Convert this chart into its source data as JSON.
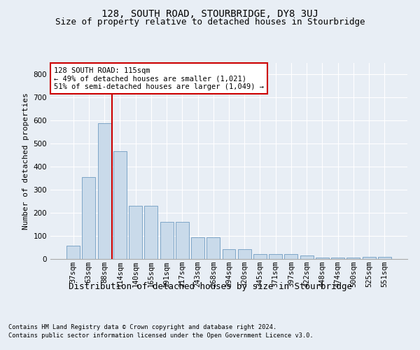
{
  "title": "128, SOUTH ROAD, STOURBRIDGE, DY8 3UJ",
  "subtitle": "Size of property relative to detached houses in Stourbridge",
  "xlabel": "Distribution of detached houses by size in Stourbridge",
  "ylabel": "Number of detached properties",
  "footer_line1": "Contains HM Land Registry data © Crown copyright and database right 2024.",
  "footer_line2": "Contains public sector information licensed under the Open Government Licence v3.0.",
  "categories": [
    "37sqm",
    "63sqm",
    "88sqm",
    "114sqm",
    "140sqm",
    "165sqm",
    "191sqm",
    "217sqm",
    "243sqm",
    "268sqm",
    "294sqm",
    "320sqm",
    "345sqm",
    "371sqm",
    "397sqm",
    "422sqm",
    "448sqm",
    "474sqm",
    "500sqm",
    "525sqm",
    "551sqm"
  ],
  "bar_values": [
    57,
    355,
    590,
    467,
    232,
    232,
    162,
    162,
    93,
    93,
    44,
    44,
    20,
    20,
    20,
    14,
    5,
    5,
    5,
    8,
    8
  ],
  "bar_color": "#c9daea",
  "bar_edge_color": "#5b8db8",
  "vline_color": "#cc0000",
  "vline_x_index": 2.5,
  "annotation_text": "128 SOUTH ROAD: 115sqm\n← 49% of detached houses are smaller (1,021)\n51% of semi-detached houses are larger (1,049) →",
  "annotation_box_color": "#ffffff",
  "annotation_box_edge": "#cc0000",
  "ylim": [
    0,
    850
  ],
  "yticks": [
    0,
    100,
    200,
    300,
    400,
    500,
    600,
    700,
    800
  ],
  "background_color": "#e8eef5",
  "plot_bg_color": "#e8eef5",
  "grid_color": "#ffffff",
  "title_fontsize": 10,
  "subtitle_fontsize": 9,
  "xlabel_fontsize": 9,
  "ylabel_fontsize": 8,
  "tick_fontsize": 7.5,
  "annotation_fontsize": 7.5,
  "footer_fontsize": 6.2
}
